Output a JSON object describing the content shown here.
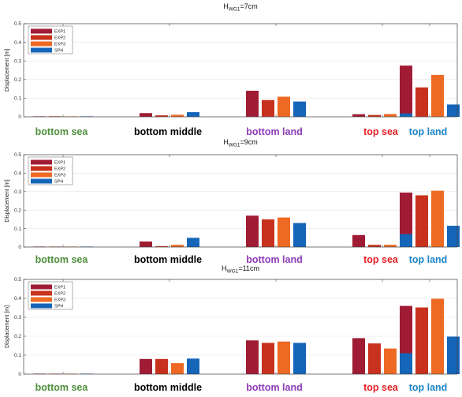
{
  "chart_data": [
    {
      "type": "bar",
      "title_main": "H",
      "title_sub": "WG1",
      "title_rest": "=7cm",
      "ylabel": "Displacement [m]",
      "ylim": [
        0,
        0.5
      ],
      "yticks": [
        "0",
        "0.1",
        "0.2",
        "0.3",
        "0.4",
        "0.5"
      ],
      "categories": [
        "bottom sea",
        "bottom middle",
        "bottom land",
        "top sea",
        "top land"
      ],
      "category_colors": [
        "#4e8f3a",
        "#000000",
        "#8e3bb5",
        "#e41f26",
        "#1f86c8"
      ],
      "series": [
        {
          "name": "EXP1",
          "color": "#a01c34",
          "values": [
            0.002,
            0.02,
            0.14,
            0.014,
            0.275
          ]
        },
        {
          "name": "EXP2",
          "color": "#c8311d",
          "values": [
            0.003,
            0.008,
            0.09,
            0.01,
            0.158
          ]
        },
        {
          "name": "EXP3",
          "color": "#ee6a24",
          "values": [
            0.002,
            0.011,
            0.108,
            0.015,
            0.225
          ]
        },
        {
          "name": "SPH",
          "color": "#1565b9",
          "values": [
            0.001,
            0.025,
            0.082,
            0.018,
            0.066
          ]
        }
      ],
      "legend": "top-left"
    },
    {
      "type": "bar",
      "title_main": "H",
      "title_sub": "WG1",
      "title_rest": "=9cm",
      "ylabel": "Displacement [m]",
      "ylim": [
        0,
        0.5
      ],
      "yticks": [
        "0",
        "0.1",
        "0.2",
        "0.3",
        "0.4",
        "0.5"
      ],
      "categories": [
        "bottom sea",
        "bottom middle",
        "bottom land",
        "top sea",
        "top land"
      ],
      "category_colors": [
        "#4e8f3a",
        "#000000",
        "#8e3bb5",
        "#e41f26",
        "#1f86c8"
      ],
      "series": [
        {
          "name": "EXP1",
          "color": "#a01c34",
          "values": [
            0.001,
            0.03,
            0.17,
            0.065,
            0.295
          ]
        },
        {
          "name": "EXP2",
          "color": "#c8311d",
          "values": [
            0.001,
            0.005,
            0.15,
            0.012,
            0.28
          ]
        },
        {
          "name": "EXP3",
          "color": "#ee6a24",
          "values": [
            0.001,
            0.012,
            0.16,
            0.012,
            0.305
          ]
        },
        {
          "name": "SPH",
          "color": "#1565b9",
          "values": [
            0.002,
            0.05,
            0.13,
            0.07,
            0.115
          ]
        }
      ],
      "legend": "top-left"
    },
    {
      "type": "bar",
      "title_main": "H",
      "title_sub": "WG1",
      "title_rest": "=11cm",
      "ylabel": "Displacement [m]",
      "ylim": [
        0,
        0.5
      ],
      "yticks": [
        "0",
        "0.1",
        "0.2",
        "0.3",
        "0.4",
        "0.5"
      ],
      "categories": [
        "bottom sea",
        "bottom middle",
        "bottom land",
        "top sea",
        "top land"
      ],
      "category_colors": [
        "#4e8f3a",
        "#000000",
        "#8e3bb5",
        "#e41f26",
        "#1f86c8"
      ],
      "series": [
        {
          "name": "EXP1",
          "color": "#a01c34",
          "values": [
            0.001,
            0.08,
            0.178,
            0.19,
            0.36
          ]
        },
        {
          "name": "EXP2",
          "color": "#c8311d",
          "values": [
            0.001,
            0.08,
            0.165,
            0.162,
            0.352
          ]
        },
        {
          "name": "EXP3",
          "color": "#ee6a24",
          "values": [
            0.002,
            0.058,
            0.172,
            0.135,
            0.398
          ]
        },
        {
          "name": "SPH",
          "color": "#1565b9",
          "values": [
            0.002,
            0.082,
            0.165,
            0.11,
            0.198
          ]
        }
      ],
      "legend": "top-left"
    }
  ]
}
